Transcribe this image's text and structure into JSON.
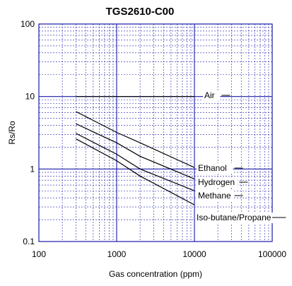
{
  "chart_data": {
    "type": "line",
    "title": "TGS2610-C00",
    "xlabel": "Gas concentration (ppm)",
    "ylabel": "Rs/Ro",
    "x_scale": "log",
    "y_scale": "log",
    "xlim": [
      100,
      100000
    ],
    "ylim": [
      0.1,
      100
    ],
    "x_ticks": [
      "100",
      "1000",
      "10000",
      "100000"
    ],
    "y_ticks": [
      "0.1",
      "1",
      "10",
      "100"
    ],
    "grid": true,
    "series": [
      {
        "name": "Air",
        "x": [
          300,
          10000
        ],
        "y": [
          10,
          10
        ]
      },
      {
        "name": "Ethanol",
        "x": [
          300,
          1000,
          2000,
          10000
        ],
        "y": [
          6.2,
          3.2,
          2.3,
          1.05
        ]
      },
      {
        "name": "Hydrogen",
        "x": [
          300,
          1000,
          2000,
          10000
        ],
        "y": [
          4.2,
          2.3,
          1.5,
          0.73
        ]
      },
      {
        "name": "Methane",
        "x": [
          300,
          1000,
          2000,
          10000
        ],
        "y": [
          3.1,
          1.6,
          1.0,
          0.5
        ]
      },
      {
        "name": "Iso-butane/Propane",
        "x": [
          300,
          1000,
          2000,
          10000
        ],
        "y": [
          2.6,
          1.3,
          0.8,
          0.32
        ]
      }
    ]
  }
}
